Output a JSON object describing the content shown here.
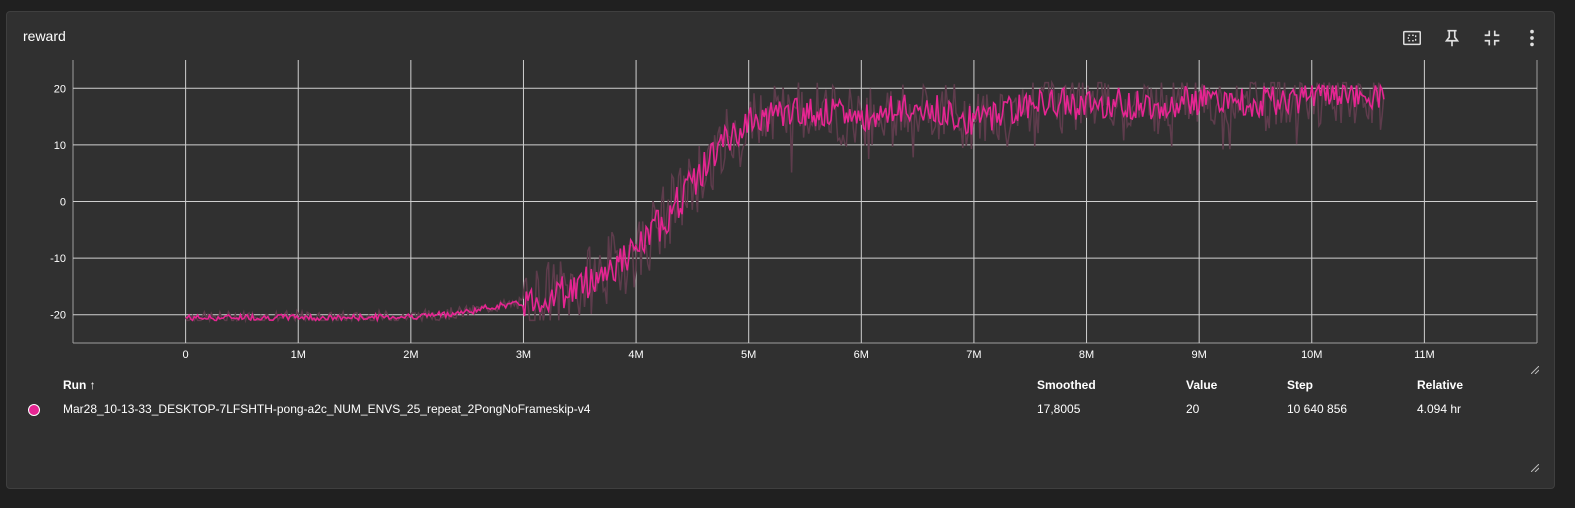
{
  "card": {
    "title": "reward"
  },
  "toolbar": {
    "icons": [
      "fit-domain-icon",
      "pin-icon",
      "collapse-icon",
      "more-vert-icon"
    ]
  },
  "colors": {
    "series": "#e52592",
    "raw": "#5e3c4c",
    "grid": "#cfcfcf",
    "background": "#303030"
  },
  "chart_data": {
    "type": "line",
    "title": "reward",
    "xlabel": "",
    "ylabel": "",
    "xlim": [
      -1000000,
      12000000
    ],
    "ylim": [
      -25,
      25
    ],
    "x_ticks": [
      "0",
      "1M",
      "2M",
      "3M",
      "4M",
      "5M",
      "6M",
      "7M",
      "8M",
      "9M",
      "10M",
      "11M"
    ],
    "y_ticks": [
      "-20",
      "-10",
      "0",
      "10",
      "20"
    ],
    "grid": true,
    "series": [
      {
        "name": "Mar28_10-13-33_DESKTOP-7LFSHTH-pong-a2c_NUM_ENVS_25_repeat_2PongNoFrameskip-v4",
        "x": [
          0,
          250000,
          500000,
          750000,
          1000000,
          1250000,
          1500000,
          1750000,
          2000000,
          2250000,
          2500000,
          2750000,
          3000000,
          3250000,
          3500000,
          3750000,
          4000000,
          4250000,
          4500000,
          4750000,
          5000000,
          5250000,
          5500000,
          5750000,
          6000000,
          6250000,
          6500000,
          6750000,
          7000000,
          7250000,
          7500000,
          7750000,
          8000000,
          8250000,
          8500000,
          8750000,
          9000000,
          9250000,
          9500000,
          9750000,
          10000000,
          10250000,
          10500000,
          10640856
        ],
        "values": [
          -20.5,
          -20.6,
          -20.4,
          -20.5,
          -20.4,
          -20.6,
          -20.5,
          -20.4,
          -20.3,
          -20.0,
          -19.5,
          -18.5,
          -18.0,
          -16.5,
          -15.0,
          -12.0,
          -9.0,
          -3.0,
          3.0,
          10.0,
          14.0,
          15.5,
          16.0,
          15.5,
          15.0,
          16.0,
          16.5,
          16.0,
          14.0,
          16.0,
          17.0,
          17.5,
          17.0,
          17.5,
          17.0,
          17.5,
          18.0,
          17.5,
          17.5,
          18.0,
          18.5,
          19.0,
          18.5,
          17.8005
        ]
      }
    ]
  },
  "table": {
    "headers": {
      "run": "Run ↑",
      "smoothed": "Smoothed",
      "value": "Value",
      "step": "Step",
      "relative": "Relative"
    },
    "rows": [
      {
        "run": "Mar28_10-13-33_DESKTOP-7LFSHTH-pong-a2c_NUM_ENVS_25_repeat_2PongNoFrameskip-v4",
        "smoothed": "17,8005",
        "value": "20",
        "step": "10 640 856",
        "relative": "4.094 hr"
      }
    ]
  }
}
